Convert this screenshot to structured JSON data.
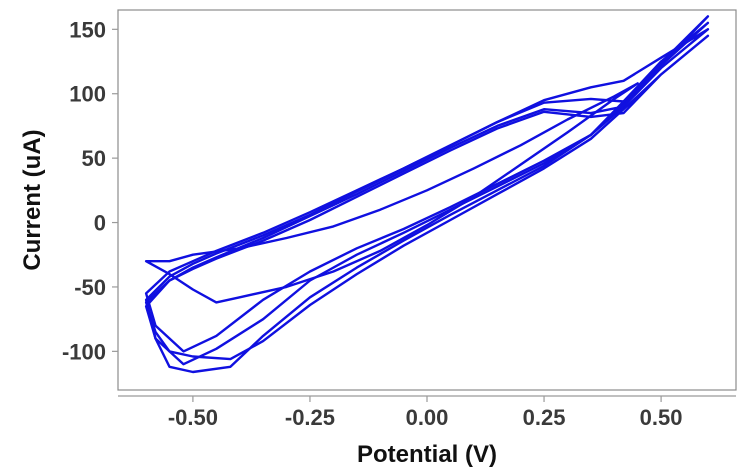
{
  "chart_data": {
    "type": "line",
    "title": "",
    "xlabel": "Potential (V)",
    "ylabel": "Current (uA)",
    "xlim": [
      -0.66,
      0.66
    ],
    "ylim": [
      -130,
      165
    ],
    "xticks": [
      -0.5,
      -0.25,
      0.0,
      0.25,
      0.5
    ],
    "xtick_labels": [
      "-0.50",
      "-0.25",
      "0.00",
      "0.25",
      "0.50"
    ],
    "yticks": [
      -100,
      -50,
      0,
      50,
      100,
      150
    ],
    "ytick_labels": [
      "-100",
      "-50",
      "0",
      "50",
      "100",
      "150"
    ],
    "grid": false,
    "legend": "none",
    "color": "#1010e0",
    "series": [
      {
        "x": [
          0.6,
          0.5,
          0.42,
          0.35,
          0.25,
          0.15,
          0.05,
          -0.05,
          -0.15,
          -0.25,
          -0.35,
          -0.45,
          -0.52,
          -0.58,
          -0.6,
          -0.55,
          -0.5,
          -0.45,
          -0.35,
          -0.25,
          -0.15,
          -0.05,
          0.05,
          0.15,
          0.25,
          0.35,
          0.42,
          0.5,
          0.6
        ],
        "y": [
          150,
          120,
          90,
          68,
          48,
          30,
          12,
          -5,
          -20,
          -38,
          -60,
          -88,
          -100,
          -80,
          -55,
          -38,
          -30,
          -22,
          -8,
          8,
          25,
          42,
          60,
          78,
          95,
          105,
          110,
          128,
          150
        ]
      },
      {
        "x": [
          0.6,
          0.5,
          0.42,
          0.35,
          0.25,
          0.15,
          0.05,
          -0.05,
          -0.15,
          -0.25,
          -0.35,
          -0.45,
          -0.52,
          -0.58,
          -0.6,
          -0.55,
          -0.5,
          -0.45,
          -0.35,
          -0.25,
          -0.15,
          -0.05,
          0.05,
          0.15,
          0.25,
          0.35,
          0.42,
          0.5,
          0.6
        ],
        "y": [
          155,
          122,
          92,
          68,
          46,
          28,
          10,
          -8,
          -25,
          -45,
          -75,
          -98,
          -110,
          -90,
          -60,
          -42,
          -32,
          -24,
          -10,
          6,
          24,
          42,
          60,
          78,
          93,
          96,
          94,
          125,
          155
        ]
      },
      {
        "x": [
          0.6,
          0.5,
          0.42,
          0.35,
          0.25,
          0.15,
          0.05,
          -0.05,
          -0.15,
          -0.25,
          -0.35,
          -0.42,
          -0.5,
          -0.55,
          -0.58,
          -0.6,
          -0.55,
          -0.5,
          -0.45,
          -0.35,
          -0.25,
          -0.15,
          -0.05,
          0.05,
          0.15,
          0.25,
          0.35,
          0.42,
          0.5,
          0.6
        ],
        "y": [
          160,
          124,
          94,
          68,
          44,
          25,
          6,
          -14,
          -35,
          -58,
          -88,
          -112,
          -116,
          -112,
          -90,
          -65,
          -45,
          -35,
          -27,
          -12,
          5,
          22,
          40,
          58,
          75,
          88,
          85,
          90,
          122,
          160
        ]
      },
      {
        "x": [
          0.6,
          0.5,
          0.42,
          0.35,
          0.25,
          0.15,
          0.05,
          -0.05,
          -0.15,
          -0.25,
          -0.35,
          -0.42,
          -0.5,
          -0.55,
          -0.58,
          -0.6,
          -0.55,
          -0.5,
          -0.45,
          -0.35,
          -0.25,
          -0.15,
          -0.05,
          0.05,
          0.15,
          0.25,
          0.35,
          0.42,
          0.5,
          0.6
        ],
        "y": [
          145,
          115,
          88,
          65,
          42,
          22,
          2,
          -18,
          -40,
          -64,
          -92,
          -106,
          -104,
          -100,
          -85,
          -62,
          -45,
          -36,
          -28,
          -14,
          2,
          20,
          38,
          56,
          73,
          86,
          82,
          85,
          115,
          145
        ]
      },
      {
        "x": [
          0.45,
          0.4,
          0.3,
          0.2,
          0.1,
          0.0,
          -0.1,
          -0.2,
          -0.3,
          -0.4,
          -0.45,
          -0.5,
          -0.55,
          -0.6,
          -0.55,
          -0.5,
          -0.4,
          -0.3,
          -0.2,
          -0.1,
          0.0,
          0.1,
          0.2,
          0.3,
          0.4,
          0.45
        ],
        "y": [
          108,
          96,
          70,
          45,
          20,
          -2,
          -22,
          -38,
          -50,
          -58,
          -62,
          -52,
          -40,
          -30,
          -30,
          -25,
          -20,
          -12,
          -3,
          10,
          25,
          42,
          60,
          80,
          98,
          108
        ]
      }
    ]
  }
}
